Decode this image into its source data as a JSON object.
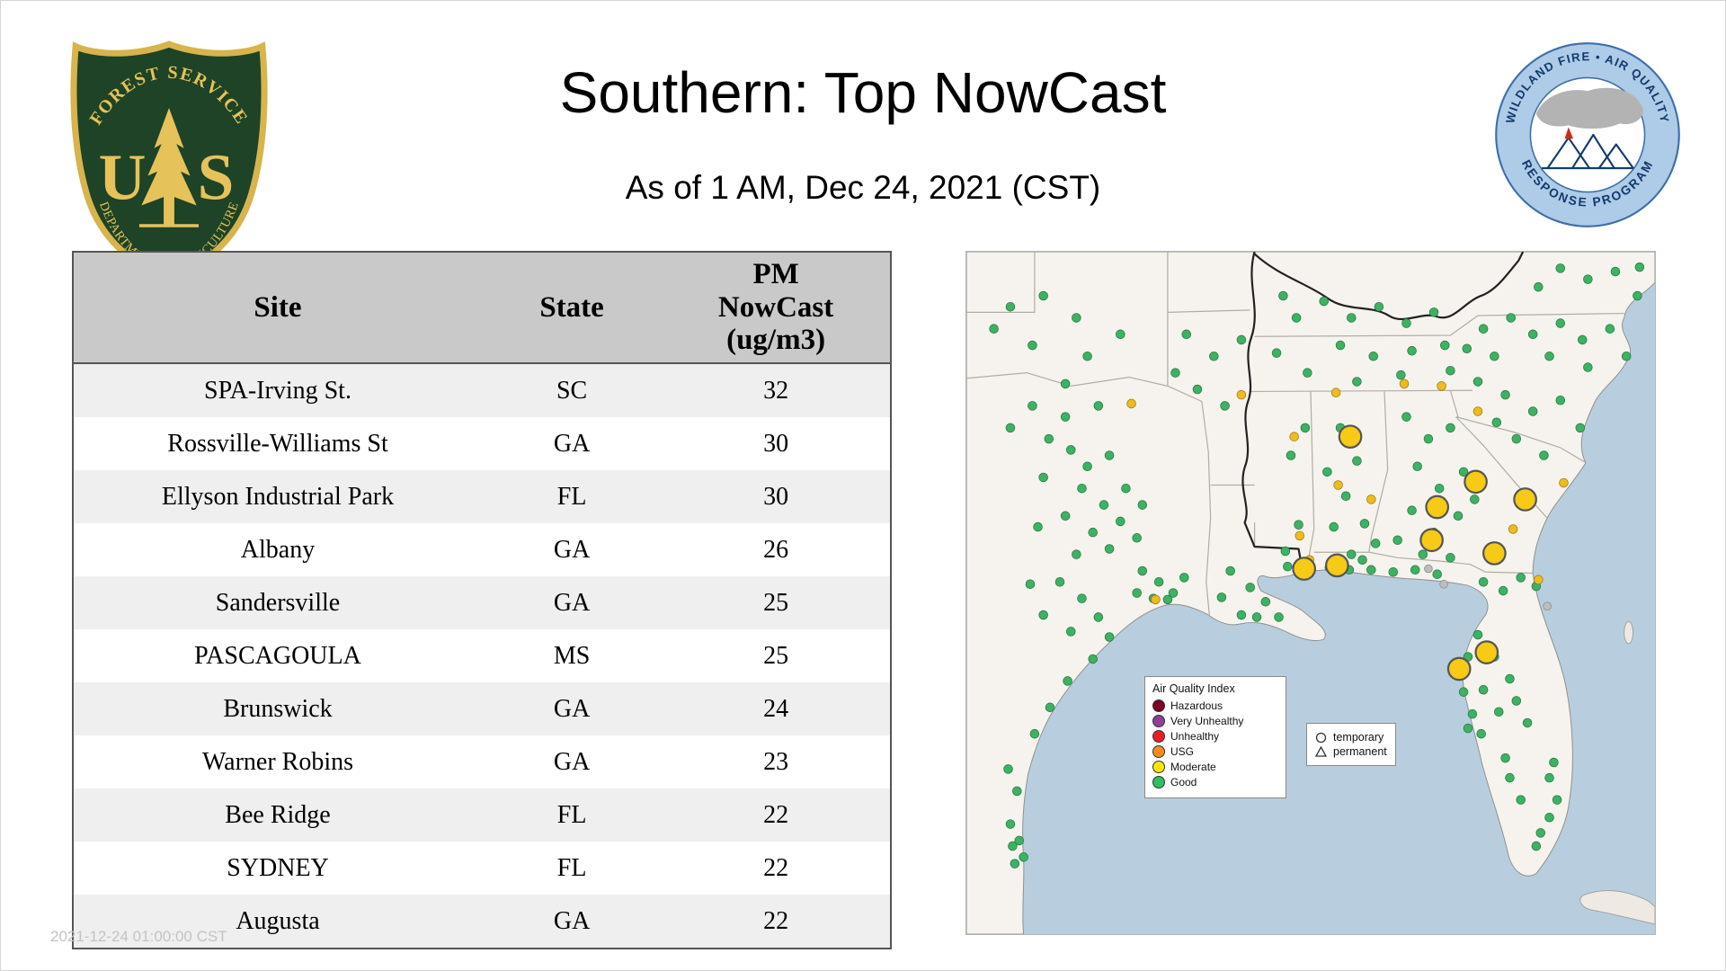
{
  "page": {
    "title": "Southern: Top NowCast",
    "subtitle": "As of 1 AM, Dec 24, 2021 (CST)",
    "watermark": "2021-12-24 01:00:00 CST"
  },
  "logos": {
    "forest_service": {
      "top_text": "FOREST SERVICE",
      "bottom_text": "DEPARTMENT OF AGRICULTURE",
      "letter_u": "U",
      "letter_s": "S"
    },
    "wfaqrp": {
      "top_text": "WILDLAND FIRE • AIR QUALITY",
      "bottom_text": "RESPONSE PROGRAM"
    }
  },
  "table": {
    "header": {
      "site": "Site",
      "state": "State",
      "pm": "PM\nNowCast\n(ug/m3)"
    },
    "rows": [
      {
        "site": "SPA-Irving St.",
        "state": "SC",
        "value": "32"
      },
      {
        "site": "Rossville-Williams St",
        "state": "GA",
        "value": "30"
      },
      {
        "site": "Ellyson Industrial Park",
        "state": "FL",
        "value": "30"
      },
      {
        "site": "Albany",
        "state": "GA",
        "value": "26"
      },
      {
        "site": "Sandersville",
        "state": "GA",
        "value": "25"
      },
      {
        "site": "PASCAGOULA",
        "state": "MS",
        "value": "25"
      },
      {
        "site": "Brunswick",
        "state": "GA",
        "value": "24"
      },
      {
        "site": "Warner Robins",
        "state": "GA",
        "value": "23"
      },
      {
        "site": "Bee Ridge",
        "state": "FL",
        "value": "22"
      },
      {
        "site": "SYDNEY",
        "state": "FL",
        "value": "22"
      },
      {
        "site": "Augusta",
        "state": "GA",
        "value": "22"
      }
    ]
  },
  "map": {
    "legend": {
      "title": "Air Quality Index",
      "items": [
        {
          "label": "Hazardous",
          "color": "#7e0023"
        },
        {
          "label": "Very Unhealthy",
          "color": "#8f3f97"
        },
        {
          "label": "Unhealthy",
          "color": "#ed1c24"
        },
        {
          "label": "USG",
          "color": "#f98c1f"
        },
        {
          "label": "Moderate",
          "color": "#ffe600"
        },
        {
          "label": "Good",
          "color": "#2fbe62"
        }
      ]
    },
    "marker_legend": {
      "temporary": "temporary",
      "permanent": "permanent"
    },
    "colors": {
      "good": "#3eb164",
      "good_stroke": "#1f7a43",
      "moderate": "#eebc1c",
      "moderate_stroke": "#9a7b10",
      "moderate_large": "#f6ca15",
      "moderate_large_stroke": "#555555",
      "inactive": "#bdbdbd",
      "inactive_stroke": "#8a8a8a"
    },
    "markers": {
      "good": [
        [
          540,
          15
        ],
        [
          565,
          25
        ],
        [
          590,
          18
        ],
        [
          610,
          40
        ],
        [
          520,
          32
        ],
        [
          612,
          14
        ],
        [
          470,
          70
        ],
        [
          495,
          60
        ],
        [
          515,
          75
        ],
        [
          540,
          65
        ],
        [
          560,
          80
        ],
        [
          585,
          70
        ],
        [
          600,
          95
        ],
        [
          480,
          95
        ],
        [
          530,
          95
        ],
        [
          565,
          105
        ],
        [
          455,
          88
        ],
        [
          300,
          60
        ],
        [
          325,
          45
        ],
        [
          350,
          60
        ],
        [
          375,
          50
        ],
        [
          400,
          65
        ],
        [
          425,
          55
        ],
        [
          340,
          85
        ],
        [
          370,
          95
        ],
        [
          405,
          90
        ],
        [
          435,
          85
        ],
        [
          310,
          110
        ],
        [
          355,
          118
        ],
        [
          395,
          112
        ],
        [
          440,
          108
        ],
        [
          465,
          118
        ],
        [
          282,
          92
        ],
        [
          288,
          40
        ],
        [
          490,
          130
        ],
        [
          515,
          145
        ],
        [
          540,
          135
        ],
        [
          558,
          160
        ],
        [
          500,
          170
        ],
        [
          525,
          185
        ],
        [
          482,
          155
        ],
        [
          400,
          150
        ],
        [
          420,
          170
        ],
        [
          440,
          160
        ],
        [
          410,
          195
        ],
        [
          430,
          215
        ],
        [
          452,
          200
        ],
        [
          405,
          235
        ],
        [
          425,
          255
        ],
        [
          447,
          240
        ],
        [
          462,
          225
        ],
        [
          415,
          275
        ],
        [
          440,
          278
        ],
        [
          392,
          262
        ],
        [
          340,
          160
        ],
        [
          355,
          190
        ],
        [
          345,
          222
        ],
        [
          362,
          247
        ],
        [
          350,
          275
        ],
        [
          372,
          265
        ],
        [
          334,
          250
        ],
        [
          328,
          200
        ],
        [
          295,
          185
        ],
        [
          302,
          248
        ],
        [
          290,
          272
        ],
        [
          308,
          160
        ],
        [
          200,
          75
        ],
        [
          225,
          95
        ],
        [
          210,
          125
        ],
        [
          235,
          140
        ],
        [
          190,
          110
        ],
        [
          250,
          80
        ],
        [
          40,
          50
        ],
        [
          70,
          40
        ],
        [
          100,
          60
        ],
        [
          60,
          85
        ],
        [
          110,
          95
        ],
        [
          140,
          75
        ],
        [
          90,
          120
        ],
        [
          25,
          70
        ],
        [
          60,
          140
        ],
        [
          90,
          150
        ],
        [
          120,
          140
        ],
        [
          75,
          170
        ],
        [
          40,
          160
        ],
        [
          95,
          180
        ],
        [
          110,
          195
        ],
        [
          130,
          185
        ],
        [
          105,
          215
        ],
        [
          125,
          230
        ],
        [
          145,
          215
        ],
        [
          90,
          240
        ],
        [
          115,
          255
        ],
        [
          140,
          245
        ],
        [
          160,
          230
        ],
        [
          100,
          275
        ],
        [
          130,
          270
        ],
        [
          155,
          260
        ],
        [
          70,
          205
        ],
        [
          65,
          250
        ],
        [
          85,
          300
        ],
        [
          105,
          315
        ],
        [
          70,
          330
        ],
        [
          95,
          345
        ],
        [
          120,
          332
        ],
        [
          58,
          302
        ],
        [
          160,
          290
        ],
        [
          175,
          300
        ],
        [
          188,
          310
        ],
        [
          170,
          315
        ],
        [
          183,
          316
        ],
        [
          155,
          310
        ],
        [
          198,
          296
        ],
        [
          130,
          350
        ],
        [
          115,
          370
        ],
        [
          92,
          390
        ],
        [
          76,
          414
        ],
        [
          62,
          438
        ],
        [
          40,
          520
        ],
        [
          48,
          535
        ],
        [
          52,
          550
        ],
        [
          44,
          556
        ],
        [
          38,
          470
        ],
        [
          46,
          490
        ],
        [
          42,
          540
        ],
        [
          240,
          290
        ],
        [
          258,
          305
        ],
        [
          272,
          318
        ],
        [
          250,
          330
        ],
        [
          284,
          332
        ],
        [
          232,
          314
        ],
        [
          292,
          286
        ],
        [
          264,
          332
        ],
        [
          312,
          288
        ],
        [
          330,
          287
        ],
        [
          348,
          289
        ],
        [
          368,
          289
        ],
        [
          388,
          291
        ],
        [
          408,
          289
        ],
        [
          428,
          293
        ],
        [
          360,
          280
        ],
        [
          470,
          300
        ],
        [
          488,
          308
        ],
        [
          504,
          296
        ],
        [
          518,
          304
        ],
        [
          465,
          348
        ],
        [
          480,
          368
        ],
        [
          494,
          388
        ],
        [
          470,
          398
        ],
        [
          484,
          418
        ],
        [
          456,
          368
        ],
        [
          500,
          408
        ],
        [
          510,
          428
        ],
        [
          452,
          400
        ],
        [
          460,
          420
        ],
        [
          468,
          438
        ],
        [
          456,
          433
        ],
        [
          530,
          478
        ],
        [
          537,
          498
        ],
        [
          530,
          514
        ],
        [
          522,
          528
        ],
        [
          534,
          464
        ],
        [
          518,
          540
        ],
        [
          494,
          478
        ],
        [
          504,
          498
        ],
        [
          490,
          460
        ]
      ],
      "moderate_small": [
        [
          150,
          138
        ],
        [
          250,
          130
        ],
        [
          298,
          168
        ],
        [
          336,
          128
        ],
        [
          398,
          120
        ],
        [
          432,
          122
        ],
        [
          465,
          145
        ],
        [
          303,
          258
        ],
        [
          338,
          212
        ],
        [
          172,
          316
        ],
        [
          312,
          280
        ],
        [
          520,
          298
        ],
        [
          543,
          210
        ],
        [
          497,
          252
        ],
        [
          368,
          225
        ]
      ],
      "moderate_large": [
        [
          349,
          168
        ],
        [
          463,
          209
        ],
        [
          428,
          232
        ],
        [
          508,
          225
        ],
        [
          423,
          262
        ],
        [
          480,
          274
        ],
        [
          307,
          288
        ],
        [
          337,
          285
        ],
        [
          473,
          364
        ],
        [
          448,
          379
        ]
      ],
      "inactive": [
        [
          420,
          288
        ],
        [
          434,
          302
        ],
        [
          528,
          322
        ]
      ]
    }
  }
}
